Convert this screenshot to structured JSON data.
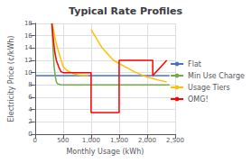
{
  "chart_data": {
    "type": "line",
    "title": "Typical Rate Profiles",
    "xlabel": "Monthly Usage (kWh)",
    "ylabel": "Electricity Price (¢/kWh)",
    "xlim": [
      0,
      2500
    ],
    "ylim": [
      0,
      18
    ],
    "xticks": [
      0,
      500,
      1000,
      1500,
      2000,
      2500
    ],
    "yticks": [
      0,
      2,
      4,
      6,
      8,
      10,
      12,
      14,
      16,
      18
    ],
    "grid": true,
    "legend": "right",
    "series": [
      {
        "name": "Flat",
        "color": "#4472C4",
        "x": [
          0,
          2400
        ],
        "values": [
          9.5,
          9.5
        ]
      },
      {
        "name": "Min Use Charge",
        "color": "#70AD47",
        "x": [
          300,
          320,
          340,
          360,
          380,
          400,
          450,
          500,
          600,
          800,
          1000,
          1500,
          2000,
          2400
        ],
        "values": [
          18,
          14,
          11,
          9.5,
          8.5,
          8.2,
          8.05,
          8.0,
          8.0,
          8.0,
          8.0,
          8.0,
          8.0,
          8.0
        ]
      },
      {
        "name": "Usage Tiers",
        "color": "#FFC000",
        "x": [
          300,
          330,
          360,
          400,
          450,
          500,
          550,
          600,
          700,
          800,
          900,
          950,
          null,
          1000,
          1100,
          1200,
          1400,
          1600,
          1800,
          2000,
          2200,
          2350
        ],
        "values": [
          18.0,
          17.0,
          15.5,
          14.0,
          12.5,
          11.0,
          10.5,
          10.2,
          9.8,
          9.6,
          9.5,
          9.5,
          null,
          17.0,
          15.5,
          14.0,
          12.0,
          11.0,
          10.0,
          9.3,
          8.8,
          8.5
        ]
      },
      {
        "name": "OMG!",
        "color": "#FF0000",
        "x": [
          300,
          320,
          350,
          380,
          420,
          460,
          500,
          1000,
          1000,
          1500,
          1500,
          2100,
          2100,
          2350
        ],
        "values": [
          18.0,
          16.0,
          13.5,
          12.0,
          11.0,
          10.2,
          10.0,
          10.0,
          3.5,
          3.5,
          12.0,
          12.0,
          9.5,
          12.0
        ]
      }
    ]
  }
}
